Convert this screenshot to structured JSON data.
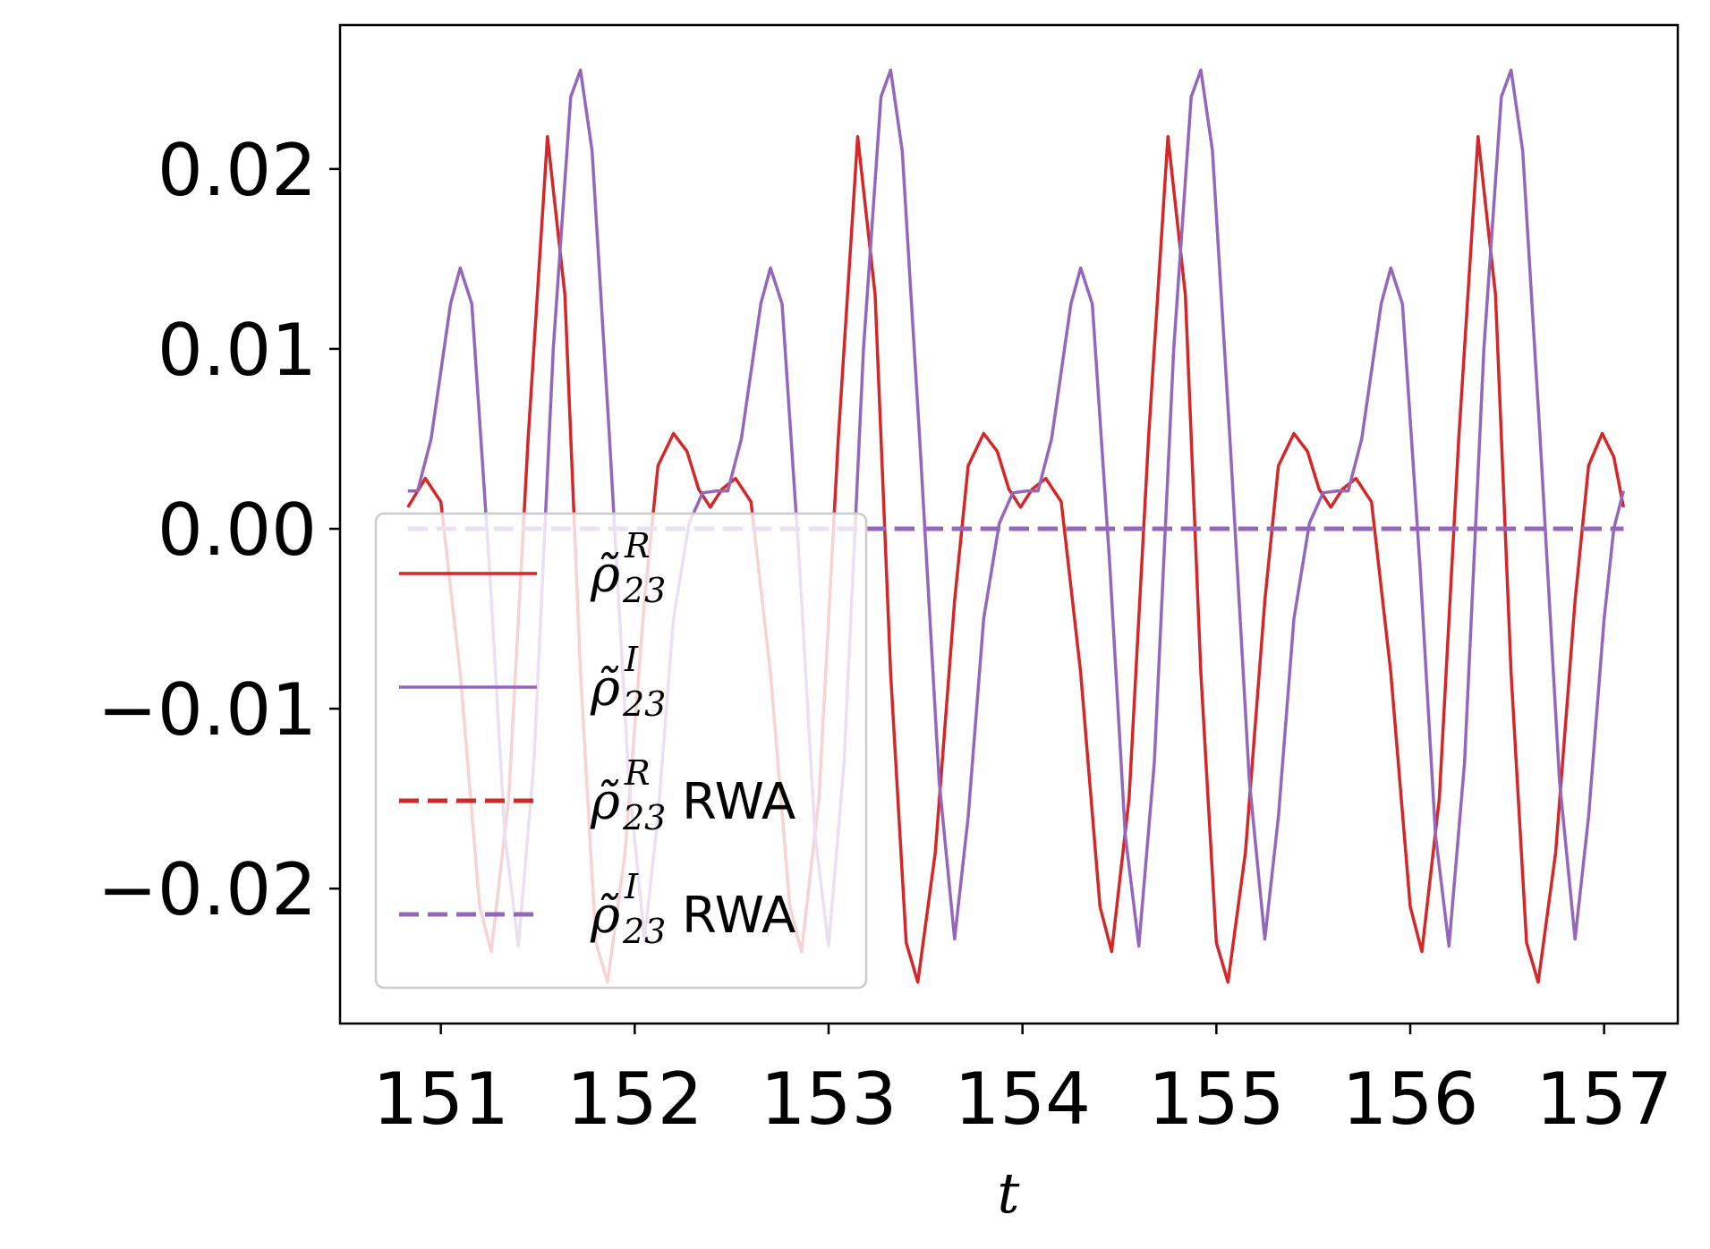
{
  "chart_data": {
    "type": "line",
    "title": "",
    "xlabel": "t",
    "ylabel": "",
    "xlim": [
      150.48,
      157.38
    ],
    "ylim": [
      -0.0275,
      0.028
    ],
    "x_ticks": [
      151,
      152,
      153,
      154,
      155,
      156,
      157
    ],
    "x_tick_labels": [
      "151",
      "152",
      "153",
      "154",
      "155",
      "156",
      "157"
    ],
    "y_ticks": [
      0.02,
      0.01,
      0.0,
      -0.01,
      -0.02
    ],
    "y_tick_labels": [
      "0.02",
      "0.01",
      "0.00",
      "−0.01",
      "−0.02"
    ],
    "grid": false,
    "legend": {
      "placement": "lower-left",
      "entries": [
        {
          "symbol": "ρ̃",
          "sup": "R",
          "sub": "23",
          "suffix": "",
          "color": "#d62728",
          "style": "solid"
        },
        {
          "symbol": "ρ̃",
          "sup": "I",
          "sub": "23",
          "suffix": "",
          "color": "#9467bd",
          "style": "solid"
        },
        {
          "symbol": "ρ̃",
          "sup": "R",
          "sub": "23",
          "suffix": "RWA",
          "color": "#d62728",
          "style": "dashed"
        },
        {
          "symbol": "ρ̃",
          "sup": "I",
          "sub": "23",
          "suffix": "RWA",
          "color": "#9467bd",
          "style": "dashed"
        }
      ]
    },
    "series": [
      {
        "color": "#d62728",
        "style": "solid",
        "points": [
          [
            150.83,
            0.0012
          ],
          [
            150.92,
            0.0028
          ],
          [
            151.0,
            0.0015
          ],
          [
            151.1,
            -0.008
          ],
          [
            151.2,
            -0.021
          ],
          [
            151.26,
            -0.0235
          ],
          [
            151.35,
            -0.015
          ],
          [
            151.45,
            0.005
          ],
          [
            151.55,
            0.0218
          ],
          [
            151.64,
            0.013
          ],
          [
            151.72,
            -0.008
          ],
          [
            151.8,
            -0.023
          ],
          [
            151.86,
            -0.0252
          ],
          [
            151.95,
            -0.018
          ],
          [
            152.05,
            -0.004
          ],
          [
            152.12,
            0.0035
          ],
          [
            152.2,
            0.0053
          ],
          [
            152.27,
            0.0043
          ],
          [
            152.33,
            0.0022
          ],
          [
            152.39,
            0.0012
          ],
          [
            152.45,
            0.0022
          ],
          [
            152.52,
            0.0028
          ],
          [
            152.6,
            0.0015
          ],
          [
            152.7,
            -0.008
          ],
          [
            152.8,
            -0.021
          ],
          [
            152.86,
            -0.0235
          ],
          [
            152.95,
            -0.015
          ],
          [
            153.05,
            0.005
          ],
          [
            153.15,
            0.0218
          ],
          [
            153.24,
            0.013
          ],
          [
            153.32,
            -0.008
          ],
          [
            153.4,
            -0.023
          ],
          [
            153.46,
            -0.0252
          ],
          [
            153.55,
            -0.018
          ],
          [
            153.65,
            -0.004
          ],
          [
            153.72,
            0.0035
          ],
          [
            153.8,
            0.0053
          ],
          [
            153.87,
            0.0043
          ],
          [
            153.93,
            0.0022
          ],
          [
            153.99,
            0.0012
          ],
          [
            154.05,
            0.0022
          ],
          [
            154.12,
            0.0028
          ],
          [
            154.2,
            0.0015
          ],
          [
            154.3,
            -0.008
          ],
          [
            154.4,
            -0.021
          ],
          [
            154.46,
            -0.0235
          ],
          [
            154.55,
            -0.015
          ],
          [
            154.65,
            0.005
          ],
          [
            154.75,
            0.0218
          ],
          [
            154.84,
            0.013
          ],
          [
            154.92,
            -0.008
          ],
          [
            155.0,
            -0.023
          ],
          [
            155.06,
            -0.0252
          ],
          [
            155.15,
            -0.018
          ],
          [
            155.25,
            -0.004
          ],
          [
            155.32,
            0.0035
          ],
          [
            155.4,
            0.0053
          ],
          [
            155.47,
            0.0043
          ],
          [
            155.53,
            0.0022
          ],
          [
            155.59,
            0.0012
          ],
          [
            155.65,
            0.0022
          ],
          [
            155.72,
            0.0028
          ],
          [
            155.8,
            0.0015
          ],
          [
            155.9,
            -0.008
          ],
          [
            156.0,
            -0.021
          ],
          [
            156.06,
            -0.0235
          ],
          [
            156.15,
            -0.015
          ],
          [
            156.25,
            0.005
          ],
          [
            156.35,
            0.0218
          ],
          [
            156.44,
            0.013
          ],
          [
            156.52,
            -0.008
          ],
          [
            156.6,
            -0.023
          ],
          [
            156.66,
            -0.0252
          ],
          [
            156.75,
            -0.018
          ],
          [
            156.85,
            -0.004
          ],
          [
            156.92,
            0.0035
          ],
          [
            156.99,
            0.0053
          ],
          [
            157.05,
            0.004
          ],
          [
            157.1,
            0.0012
          ]
        ]
      },
      {
        "color": "#9467bd",
        "style": "solid",
        "points": [
          [
            150.83,
            0.0021
          ],
          [
            150.88,
            0.0021
          ],
          [
            150.95,
            0.005
          ],
          [
            151.05,
            0.0125
          ],
          [
            151.1,
            0.0145
          ],
          [
            151.16,
            0.0125
          ],
          [
            151.25,
            -0.002
          ],
          [
            151.33,
            -0.017
          ],
          [
            151.4,
            -0.0232
          ],
          [
            151.48,
            -0.013
          ],
          [
            151.58,
            0.01
          ],
          [
            151.67,
            0.024
          ],
          [
            151.72,
            0.0255
          ],
          [
            151.78,
            0.021
          ],
          [
            151.87,
            0.005
          ],
          [
            151.97,
            -0.014
          ],
          [
            152.05,
            -0.0228
          ],
          [
            152.12,
            -0.016
          ],
          [
            152.2,
            -0.005
          ],
          [
            152.28,
            0.0003
          ],
          [
            152.35,
            0.002
          ],
          [
            152.42,
            0.0021
          ],
          [
            152.48,
            0.0021
          ],
          [
            152.55,
            0.005
          ],
          [
            152.65,
            0.0125
          ],
          [
            152.7,
            0.0145
          ],
          [
            152.76,
            0.0125
          ],
          [
            152.85,
            -0.002
          ],
          [
            152.93,
            -0.017
          ],
          [
            153.0,
            -0.0232
          ],
          [
            153.08,
            -0.013
          ],
          [
            153.18,
            0.01
          ],
          [
            153.27,
            0.024
          ],
          [
            153.32,
            0.0255
          ],
          [
            153.38,
            0.021
          ],
          [
            153.47,
            0.005
          ],
          [
            153.57,
            -0.014
          ],
          [
            153.65,
            -0.0228
          ],
          [
            153.72,
            -0.016
          ],
          [
            153.8,
            -0.005
          ],
          [
            153.88,
            0.0003
          ],
          [
            153.95,
            0.002
          ],
          [
            154.02,
            0.0021
          ],
          [
            154.08,
            0.0021
          ],
          [
            154.15,
            0.005
          ],
          [
            154.25,
            0.0125
          ],
          [
            154.3,
            0.0145
          ],
          [
            154.36,
            0.0125
          ],
          [
            154.45,
            -0.002
          ],
          [
            154.53,
            -0.017
          ],
          [
            154.6,
            -0.0232
          ],
          [
            154.68,
            -0.013
          ],
          [
            154.78,
            0.01
          ],
          [
            154.87,
            0.024
          ],
          [
            154.92,
            0.0255
          ],
          [
            154.98,
            0.021
          ],
          [
            155.07,
            0.005
          ],
          [
            155.17,
            -0.014
          ],
          [
            155.25,
            -0.0228
          ],
          [
            155.32,
            -0.016
          ],
          [
            155.4,
            -0.005
          ],
          [
            155.48,
            0.0003
          ],
          [
            155.55,
            0.002
          ],
          [
            155.62,
            0.0021
          ],
          [
            155.68,
            0.0021
          ],
          [
            155.75,
            0.005
          ],
          [
            155.85,
            0.0125
          ],
          [
            155.9,
            0.0145
          ],
          [
            155.96,
            0.0125
          ],
          [
            156.05,
            -0.002
          ],
          [
            156.13,
            -0.017
          ],
          [
            156.2,
            -0.0232
          ],
          [
            156.28,
            -0.013
          ],
          [
            156.38,
            0.01
          ],
          [
            156.47,
            0.024
          ],
          [
            156.52,
            0.0255
          ],
          [
            156.58,
            0.021
          ],
          [
            156.67,
            0.005
          ],
          [
            156.77,
            -0.014
          ],
          [
            156.85,
            -0.0228
          ],
          [
            156.92,
            -0.016
          ],
          [
            157.0,
            -0.005
          ],
          [
            157.05,
            0.0
          ],
          [
            157.1,
            0.0021
          ]
        ]
      },
      {
        "color": "#d62728",
        "style": "dashed",
        "points": [
          [
            150.83,
            0.0
          ],
          [
            157.1,
            0.0
          ]
        ]
      },
      {
        "color": "#9467bd",
        "style": "dashed",
        "points": [
          [
            150.83,
            0.0
          ],
          [
            157.1,
            0.0
          ]
        ]
      }
    ]
  }
}
